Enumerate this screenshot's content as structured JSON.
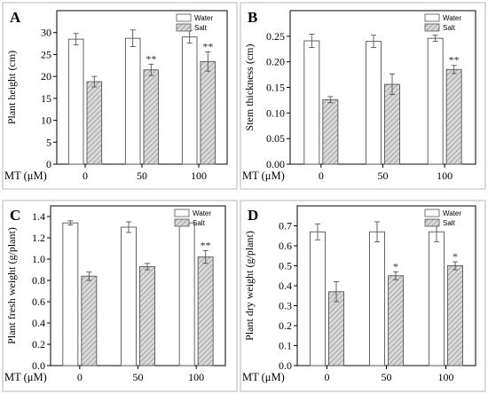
{
  "chart_data": [
    {
      "type": "bar",
      "panel_letter": "A",
      "x_title": "MT (μM)",
      "categories": [
        "0",
        "50",
        "100"
      ],
      "ylabel": "Plant height (cm)",
      "ylim": [
        0,
        35
      ],
      "yticks": [
        "0",
        "5",
        "10",
        "15",
        "20",
        "25",
        "30"
      ],
      "series": [
        {
          "name": "Water",
          "values": [
            28.5,
            28.7,
            29.0
          ],
          "errors": [
            1.3,
            1.9,
            1.4
          ]
        },
        {
          "name": "Salt",
          "values": [
            18.8,
            21.5,
            23.4
          ],
          "errors": [
            1.2,
            1.3,
            2.2
          ]
        }
      ],
      "annotations": [
        "",
        "**",
        "**"
      ],
      "legend": "top-right"
    },
    {
      "type": "bar",
      "panel_letter": "B",
      "x_title": "MT (μM)",
      "categories": [
        "0",
        "50",
        "100"
      ],
      "ylabel": "Stem thickness (cm)",
      "ylim": [
        0,
        0.3
      ],
      "yticks": [
        "0.00",
        "0.05",
        "0.10",
        "0.15",
        "0.20",
        "0.25"
      ],
      "series": [
        {
          "name": "Water",
          "values": [
            0.241,
            0.24,
            0.246
          ],
          "errors": [
            0.013,
            0.012,
            0.006
          ]
        },
        {
          "name": "Salt",
          "values": [
            0.126,
            0.156,
            0.185
          ],
          "errors": [
            0.006,
            0.02,
            0.008
          ]
        }
      ],
      "annotations": [
        "",
        "",
        "**"
      ],
      "legend": "top-right"
    },
    {
      "type": "bar",
      "panel_letter": "C",
      "x_title": "MT (μM)",
      "categories": [
        "0",
        "50",
        "100"
      ],
      "ylabel": "Plant fresh weight (g/plant)",
      "ylim": [
        0,
        1.5
      ],
      "yticks": [
        "0.0",
        "0.2",
        "0.4",
        "0.6",
        "0.8",
        "1.0",
        "1.2",
        "1.4"
      ],
      "series": [
        {
          "name": "Water",
          "values": [
            1.34,
            1.3,
            1.34
          ],
          "errors": [
            0.02,
            0.05,
            0.02
          ]
        },
        {
          "name": "Salt",
          "values": [
            0.84,
            0.93,
            1.02
          ],
          "errors": [
            0.04,
            0.03,
            0.06
          ]
        }
      ],
      "annotations": [
        "",
        "",
        "**"
      ],
      "legend": "top-right"
    },
    {
      "type": "bar",
      "panel_letter": "D",
      "x_title": "MT (μM)",
      "categories": [
        "0",
        "50",
        "100"
      ],
      "ylabel": "Plant dry weight (g/plant)",
      "ylim": [
        0,
        0.8
      ],
      "yticks": [
        "0.0",
        "0.1",
        "0.2",
        "0.3",
        "0.4",
        "0.5",
        "0.6",
        "0.7"
      ],
      "series": [
        {
          "name": "Water",
          "values": [
            0.67,
            0.67,
            0.67
          ],
          "errors": [
            0.04,
            0.05,
            0.05
          ]
        },
        {
          "name": "Salt",
          "values": [
            0.37,
            0.45,
            0.5
          ],
          "errors": [
            0.05,
            0.02,
            0.02
          ]
        }
      ],
      "annotations": [
        "",
        "*",
        "*"
      ],
      "legend": "top-right"
    }
  ]
}
